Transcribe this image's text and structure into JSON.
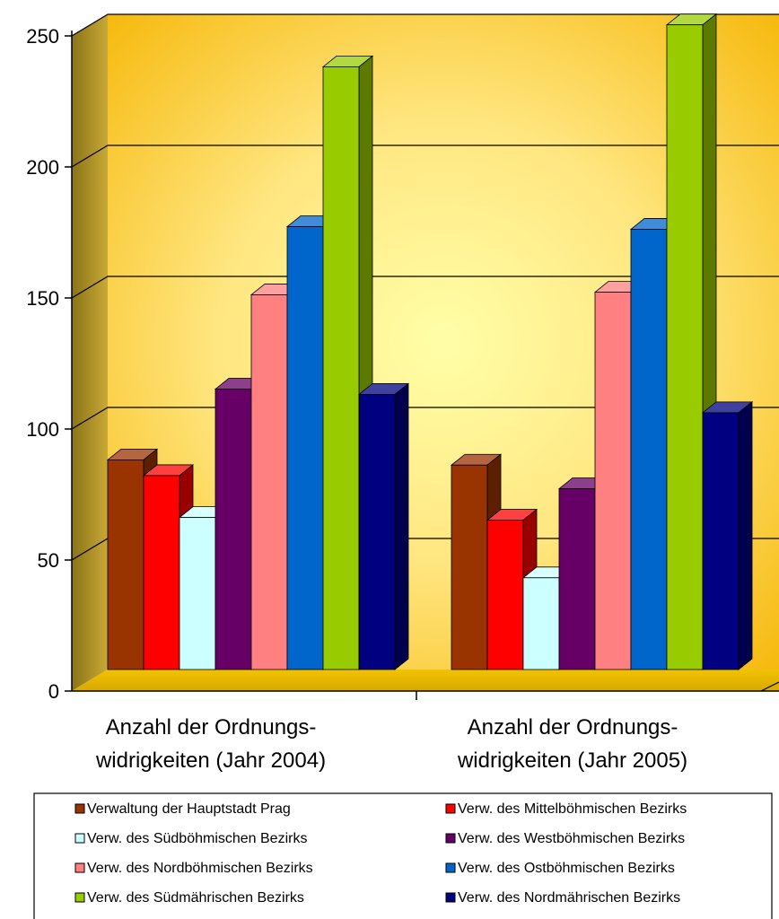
{
  "chart_data": {
    "type": "bar",
    "style": "3d-clustered-column",
    "categories": [
      [
        "Anzahl der Ordnungs-",
        "widrigkeiten (Jahr 2004)"
      ],
      [
        "Anzahl der Ordnungs-",
        "widrigkeiten (Jahr 2005)"
      ]
    ],
    "series": [
      {
        "name": "Verwaltung der Hauptstadt Prag",
        "color": "#993300",
        "values": [
          80,
          78
        ]
      },
      {
        "name": "Verw. des Mittelböhmischen Bezirks",
        "color": "#ff0000",
        "values": [
          74,
          57
        ]
      },
      {
        "name": "Verw. des Südböhmischen Bezirks",
        "color": "#ccffff",
        "values": [
          58,
          35
        ]
      },
      {
        "name": "Verw. des Westböhmischen Bezirks",
        "color": "#660066",
        "values": [
          107,
          69
        ]
      },
      {
        "name": "Verw. des Nordböhmischen Bezirks",
        "color": "#ff8080",
        "values": [
          143,
          144
        ]
      },
      {
        "name": "Verw. des Ostböhmischen Bezirks",
        "color": "#0066cc",
        "values": [
          169,
          168
        ]
      },
      {
        "name": "Verw. des Südmährischen Bezirks",
        "color": "#99cc00",
        "values": [
          230,
          246
        ]
      },
      {
        "name": "Verw. des Nordmährischen Bezirks",
        "color": "#000080",
        "values": [
          105,
          98
        ]
      }
    ],
    "ylim": [
      0,
      250
    ],
    "yticks": [
      0,
      50,
      100,
      150,
      200,
      250
    ],
    "grid": true,
    "legend_position": "bottom",
    "background": "yellow-orange gradient",
    "title": "",
    "xlabel": "",
    "ylabel": ""
  }
}
